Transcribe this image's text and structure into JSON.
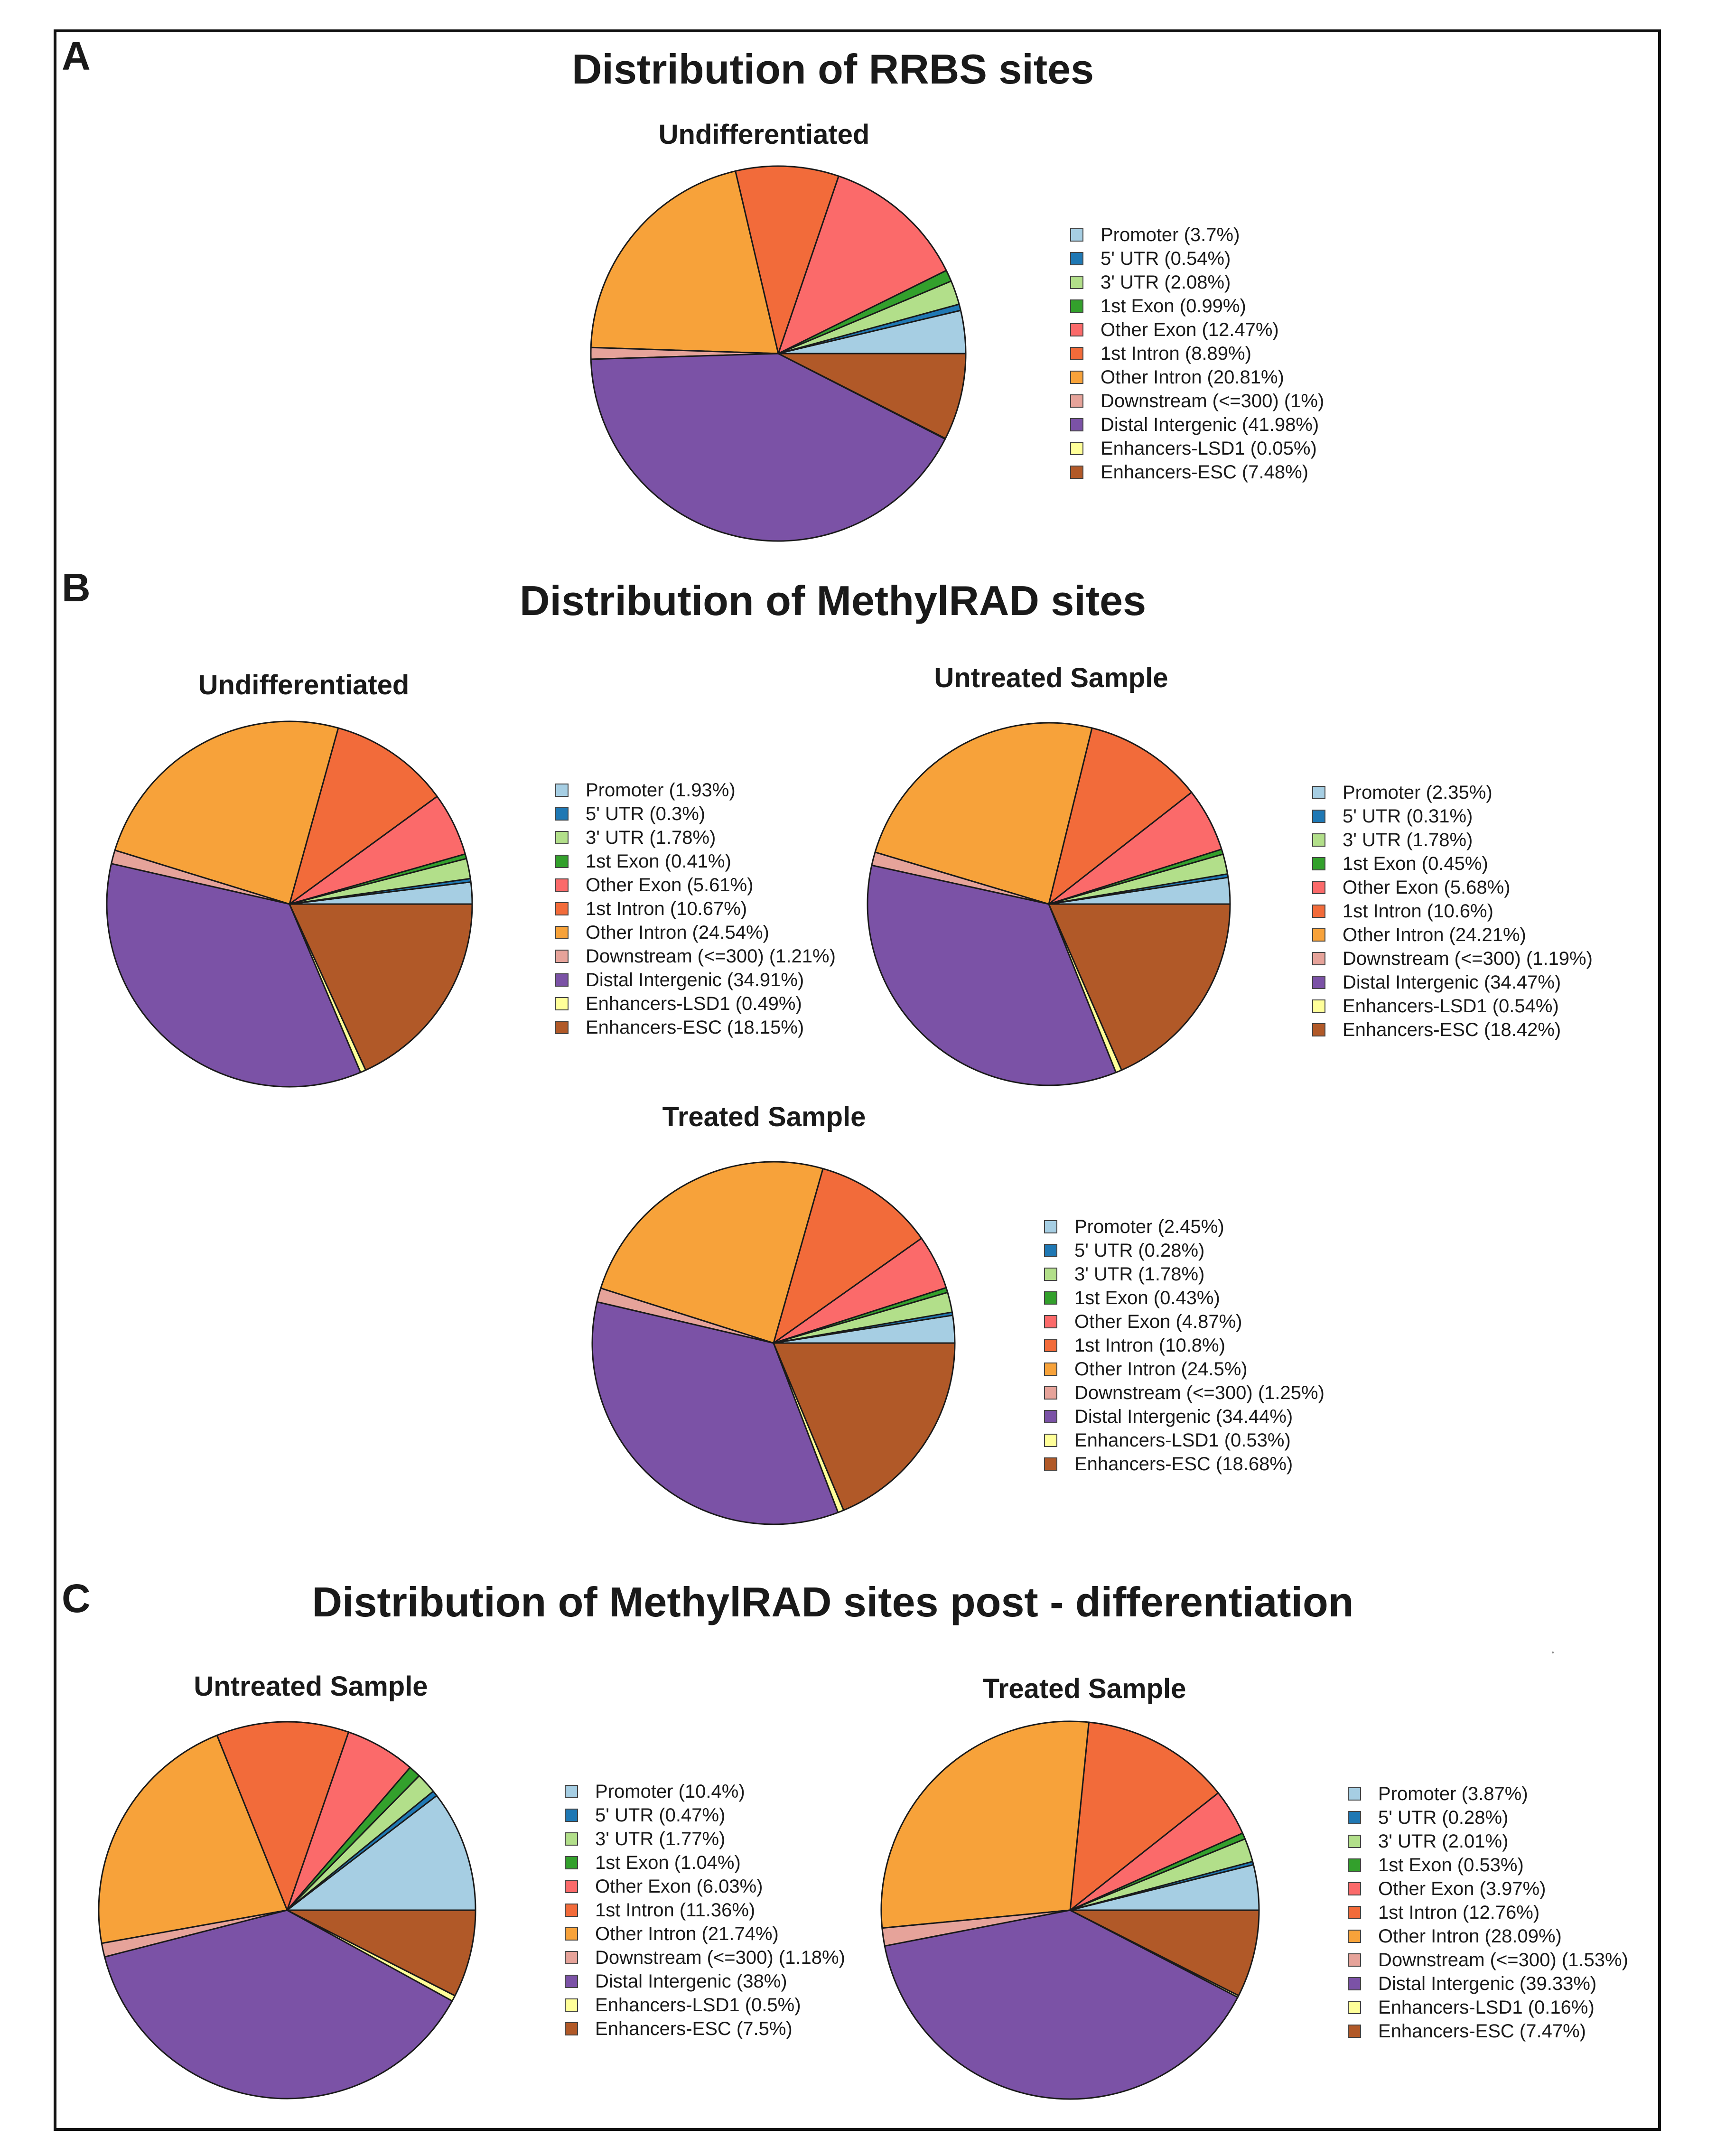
{
  "panels": {
    "A": {
      "letter": "A",
      "title": "Distribution of RRBS sites"
    },
    "B": {
      "letter": "B",
      "title": "Distribution of MethylRAD sites"
    },
    "C": {
      "letter": "C",
      "title": "Distribution of MethylRAD sites post - differentiation"
    }
  },
  "colors": [
    "#a6cee3",
    "#1f78b4",
    "#b2df8a",
    "#33a02c",
    "#fb6a6a",
    "#f26b3a",
    "#f7a23a",
    "#e6a39a",
    "#7b52a6",
    "#ffff99",
    "#b15928"
  ],
  "chart_data": [
    {
      "type": "pie",
      "panel": "A",
      "title": "Undifferentiated",
      "categories": [
        "Promoter",
        "5' UTR",
        "3' UTR",
        "1st Exon",
        "Other Exon",
        "1st Intron",
        "Other Intron",
        "Downstream (<=300)",
        "Distal Intergenic",
        "Enhancers-LSD1",
        "Enhancers-ESC"
      ],
      "values": [
        3.7,
        0.54,
        2.08,
        0.99,
        12.47,
        8.89,
        20.81,
        1,
        41.98,
        0.05,
        7.48
      ],
      "legend_labels": [
        "Promoter (3.7%)",
        "5' UTR (0.54%)",
        "3' UTR (2.08%)",
        "1st Exon (0.99%)",
        "Other Exon (12.47%)",
        "1st Intron (8.89%)",
        "Other Intron (20.81%)",
        "Downstream (<=300) (1%)",
        "Distal Intergenic (41.98%)",
        "Enhancers-LSD1 (0.05%)",
        "Enhancers-ESC (7.48%)"
      ]
    },
    {
      "type": "pie",
      "panel": "B",
      "title": "Undifferentiated",
      "categories": [
        "Promoter",
        "5' UTR",
        "3' UTR",
        "1st Exon",
        "Other Exon",
        "1st Intron",
        "Other Intron",
        "Downstream (<=300)",
        "Distal Intergenic",
        "Enhancers-LSD1",
        "Enhancers-ESC"
      ],
      "values": [
        1.93,
        0.3,
        1.78,
        0.41,
        5.61,
        10.67,
        24.54,
        1.21,
        34.91,
        0.49,
        18.15
      ],
      "legend_labels": [
        "Promoter (1.93%)",
        "5' UTR (0.3%)",
        "3' UTR (1.78%)",
        "1st Exon (0.41%)",
        "Other Exon (5.61%)",
        "1st Intron (10.67%)",
        "Other Intron (24.54%)",
        "Downstream (<=300) (1.21%)",
        "Distal Intergenic (34.91%)",
        "Enhancers-LSD1 (0.49%)",
        "Enhancers-ESC (18.15%)"
      ]
    },
    {
      "type": "pie",
      "panel": "B",
      "title": "Untreated Sample",
      "categories": [
        "Promoter",
        "5' UTR",
        "3' UTR",
        "1st Exon",
        "Other Exon",
        "1st Intron",
        "Other Intron",
        "Downstream (<=300)",
        "Distal Intergenic",
        "Enhancers-LSD1",
        "Enhancers-ESC"
      ],
      "values": [
        2.35,
        0.31,
        1.78,
        0.45,
        5.68,
        10.6,
        24.21,
        1.19,
        34.47,
        0.54,
        18.42
      ],
      "legend_labels": [
        "Promoter (2.35%)",
        "5' UTR (0.31%)",
        "3' UTR (1.78%)",
        "1st Exon (0.45%)",
        "Other Exon (5.68%)",
        "1st Intron (10.6%)",
        "Other Intron (24.21%)",
        "Downstream (<=300) (1.19%)",
        "Distal Intergenic (34.47%)",
        "Enhancers-LSD1 (0.54%)",
        "Enhancers-ESC (18.42%)"
      ]
    },
    {
      "type": "pie",
      "panel": "B",
      "title": "Treated Sample",
      "categories": [
        "Promoter",
        "5' UTR",
        "3' UTR",
        "1st Exon",
        "Other Exon",
        "1st Intron",
        "Other Intron",
        "Downstream (<=300)",
        "Distal Intergenic",
        "Enhancers-LSD1",
        "Enhancers-ESC"
      ],
      "values": [
        2.45,
        0.28,
        1.78,
        0.43,
        4.87,
        10.8,
        24.5,
        1.25,
        34.44,
        0.53,
        18.68
      ],
      "legend_labels": [
        "Promoter (2.45%)",
        "5' UTR (0.28%)",
        "3' UTR (1.78%)",
        "1st Exon (0.43%)",
        "Other Exon (4.87%)",
        "1st Intron (10.8%)",
        "Other Intron (24.5%)",
        "Downstream (<=300) (1.25%)",
        "Distal Intergenic (34.44%)",
        "Enhancers-LSD1 (0.53%)",
        "Enhancers-ESC (18.68%)"
      ]
    },
    {
      "type": "pie",
      "panel": "C",
      "title": "Untreated Sample",
      "categories": [
        "Promoter",
        "5' UTR",
        "3' UTR",
        "1st Exon",
        "Other Exon",
        "1st Intron",
        "Other Intron",
        "Downstream (<=300)",
        "Distal Intergenic",
        "Enhancers-LSD1",
        "Enhancers-ESC"
      ],
      "values": [
        10.4,
        0.47,
        1.77,
        1.04,
        6.03,
        11.36,
        21.74,
        1.18,
        38,
        0.5,
        7.5
      ],
      "legend_labels": [
        "Promoter (10.4%)",
        "5' UTR (0.47%)",
        "3' UTR (1.77%)",
        "1st Exon (1.04%)",
        "Other Exon (6.03%)",
        "1st Intron (11.36%)",
        "Other Intron (21.74%)",
        "Downstream (<=300) (1.18%)",
        "Distal Intergenic (38%)",
        "Enhancers-LSD1 (0.5%)",
        "Enhancers-ESC (7.5%)"
      ]
    },
    {
      "type": "pie",
      "panel": "C",
      "title": "Treated Sample",
      "categories": [
        "Promoter",
        "5' UTR",
        "3' UTR",
        "1st Exon",
        "Other Exon",
        "1st Intron",
        "Other Intron",
        "Downstream (<=300)",
        "Distal Intergenic",
        "Enhancers-LSD1",
        "Enhancers-ESC"
      ],
      "values": [
        3.87,
        0.28,
        2.01,
        0.53,
        3.97,
        12.76,
        28.09,
        1.53,
        39.33,
        0.16,
        7.47
      ],
      "legend_labels": [
        "Promoter (3.87%)",
        "5' UTR (0.28%)",
        "3' UTR (2.01%)",
        "1st Exon (0.53%)",
        "Other Exon (3.97%)",
        "1st Intron (12.76%)",
        "Other Intron (28.09%)",
        "Downstream (<=300) (1.53%)",
        "Distal Intergenic (39.33%)",
        "Enhancers-LSD1 (0.16%)",
        "Enhancers-ESC (7.47%)"
      ]
    }
  ]
}
